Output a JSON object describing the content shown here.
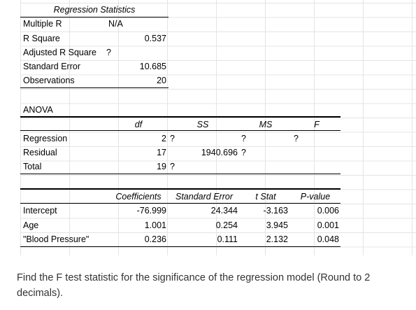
{
  "regression_statistics": {
    "title": "Regression Statistics",
    "rows": [
      {
        "label": "Multiple R",
        "value": "N/A"
      },
      {
        "label": "R Square",
        "value": "0.537"
      },
      {
        "label": "Adjusted R Square",
        "value": "?"
      },
      {
        "label": "Standard Error",
        "value": "10.685"
      },
      {
        "label": "Observations",
        "value": "20"
      }
    ]
  },
  "anova": {
    "title": "ANOVA",
    "headers": {
      "df": "df",
      "ss": "SS",
      "ms": "MS",
      "f": "F"
    },
    "rows": [
      {
        "label": "Regression",
        "df": "2",
        "df_mark": "?",
        "ss": "",
        "ss_mark": "",
        "ms": "?",
        "f": "?"
      },
      {
        "label": "Residual",
        "df": "17",
        "df_mark": "",
        "ss": "1940.696",
        "ss_mark": "?",
        "ms": "",
        "f": ""
      },
      {
        "label": "Total",
        "df": "19",
        "df_mark": "?",
        "ss": "",
        "ss_mark": "",
        "ms": "",
        "f": ""
      }
    ]
  },
  "coefficients": {
    "headers": {
      "coef": "Coefficients",
      "se": "Standard Error",
      "t": "t Stat",
      "p": "P-value"
    },
    "rows": [
      {
        "label": "Intercept",
        "coef": "-76.999",
        "se": "24.344",
        "t": "-3.163",
        "p": "0.006"
      },
      {
        "label": "Age",
        "coef": "1.001",
        "se": "0.254",
        "t": "3.945",
        "p": "0.001"
      },
      {
        "label": "\"Blood Pressure\"",
        "coef": "0.236",
        "se": "0.111",
        "t": "2.132",
        "p": "0.048"
      }
    ]
  },
  "question": "Find the F test statistic for the significance of the regression model (Round to 2 decimals)."
}
